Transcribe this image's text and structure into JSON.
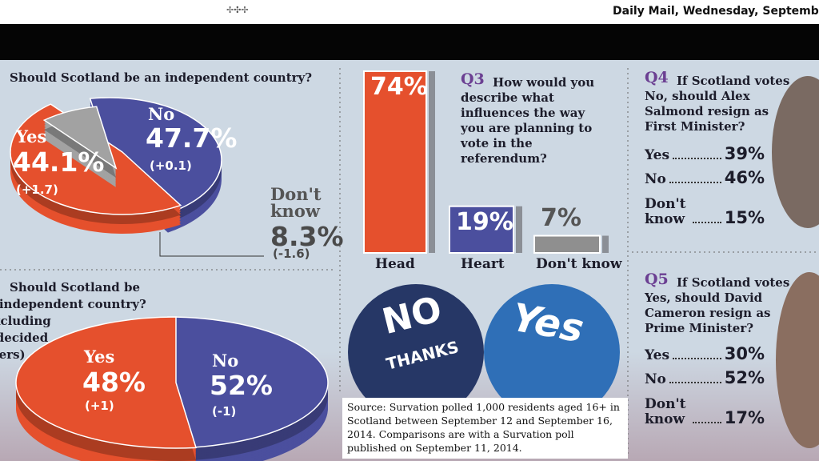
{
  "header": {
    "dateline": "Daily Mail, Wednesday, Septemb",
    "ornament": "✢✣✢"
  },
  "chart_data": [
    {
      "type": "pie",
      "number": "1",
      "title": [
        "Should Scotland be an independent country?"
      ],
      "categories": [
        "Yes",
        "No",
        "Don't know"
      ],
      "values": [
        44.1,
        47.7,
        8.3
      ],
      "value_labels": [
        "44.1%",
        "47.7%",
        "8.3%"
      ],
      "changes": [
        "(+1.7)",
        "(+0.1)",
        "(-1.6)"
      ],
      "colors": [
        "#4b4f9e",
        "#e5502d",
        "#a2a2a2"
      ]
    },
    {
      "type": "pie",
      "number": "2",
      "title": [
        "Should Scotland be",
        "an independent country?",
        "(Excluding",
        "undecided",
        "voters)"
      ],
      "categories": [
        "Yes",
        "No"
      ],
      "values": [
        48,
        52
      ],
      "value_labels": [
        "48%",
        "52%"
      ],
      "changes": [
        "(+1)",
        "(-1)"
      ],
      "colors": [
        "#4b4f9e",
        "#e5502d"
      ]
    },
    {
      "type": "bar",
      "number": "Q3",
      "title": "How would you describe what influences the way you are planning to vote in the referendum?",
      "categories": [
        "Head",
        "Heart",
        "Don't know"
      ],
      "values": [
        74,
        19,
        7
      ],
      "value_labels": [
        "74%",
        "19%",
        "7%"
      ],
      "colors": [
        "#e5502d",
        "#4b4f9e",
        "#8f8f8f"
      ]
    }
  ],
  "q4": {
    "number": "Q4",
    "title": "If Scotland votes No, should Alex Salmond resign as First Minister?",
    "rows": [
      [
        "Yes",
        "39%"
      ],
      [
        "No",
        "46%"
      ],
      [
        "Don't know",
        "15%"
      ]
    ]
  },
  "q5": {
    "number": "Q5",
    "title": "If Scotland votes Yes, should David Cameron resign as Prime Minister?",
    "rows": [
      [
        "Yes",
        "30%"
      ],
      [
        "No",
        "52%"
      ],
      [
        "Don't know",
        "17%"
      ]
    ]
  },
  "logos": {
    "no": [
      "NO",
      "THANKS"
    ],
    "yes": "Yes"
  },
  "source": "Source: Survation polled 1,000 residents aged 16+ in Scotland between September 12 and September 16, 2014. Comparisons are with a Survation poll published on September 11, 2014."
}
